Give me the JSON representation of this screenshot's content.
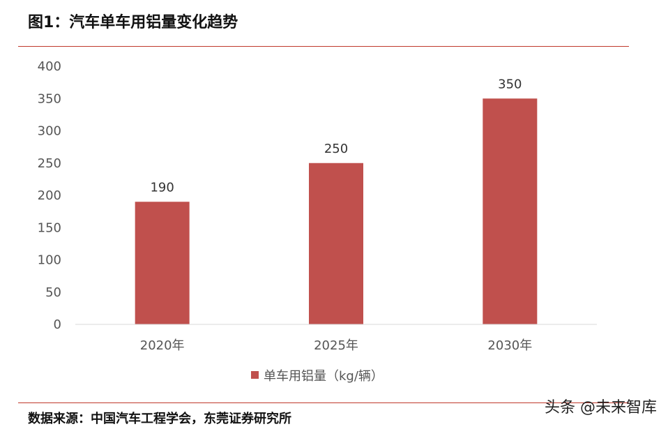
{
  "header": {
    "title": "图1：汽车单车用铝量变化趋势"
  },
  "footer": {
    "source": "数据来源：中国汽车工程学会，东莞证券研究所",
    "watermark": "头条 @未来智库"
  },
  "chart_data": {
    "type": "bar",
    "categories": [
      "2020年",
      "2025年",
      "2030年"
    ],
    "series": [
      {
        "name": "单车用铝量（kg/辆）",
        "values": [
          190,
          250,
          350
        ],
        "color": "#c0504d"
      }
    ],
    "data_labels": [
      "190",
      "250",
      "350"
    ],
    "ylim": [
      0,
      400
    ],
    "yticks": [
      0,
      50,
      100,
      150,
      200,
      250,
      300,
      350,
      400
    ],
    "grid": false,
    "legend": "bottom-center"
  }
}
